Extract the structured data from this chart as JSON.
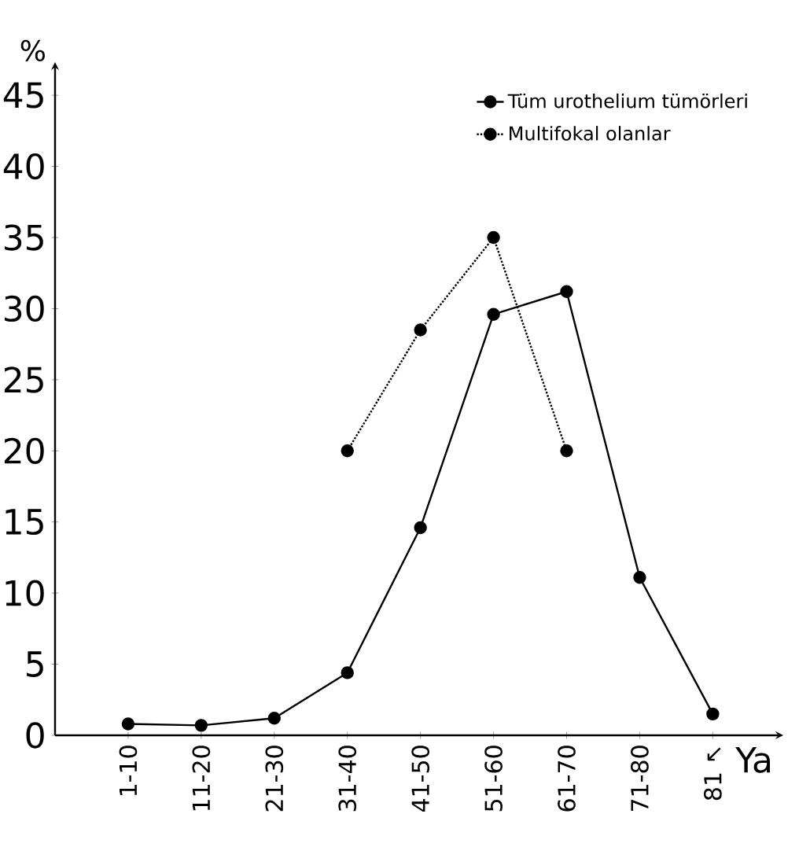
{
  "chart_data": {
    "type": "line",
    "xlabel": "Ya",
    "ylabel": "%",
    "categories": [
      "1-10",
      "11-20",
      "21-30",
      "31-40",
      "41-50",
      "51-60",
      "61-70",
      "71-80",
      "81 ↖"
    ],
    "ylim": [
      0,
      47
    ],
    "yticks": [
      0,
      5,
      10,
      15,
      20,
      25,
      30,
      35,
      40,
      45
    ],
    "legend": "top right",
    "marker": "circle",
    "series": [
      {
        "name": "Tüm urothelium tümörleri",
        "color": "#000000",
        "line_style": "solid",
        "values": [
          0.8,
          0.7,
          1.2,
          4.4,
          14.6,
          29.6,
          31.2,
          11.1,
          1.5
        ]
      },
      {
        "name": "Multifokal olanlar",
        "color": "#000000",
        "line_style": "dotted",
        "values": [
          null,
          null,
          null,
          20,
          28.5,
          35,
          20,
          null,
          null
        ]
      }
    ]
  }
}
